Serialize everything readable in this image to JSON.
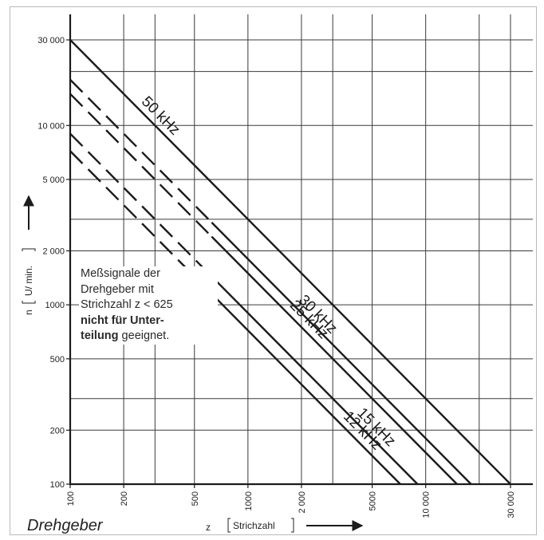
{
  "caption": "Drehgeber",
  "note": {
    "line1": "Meßsignale der",
    "line2": "Drehgeber mit",
    "line3": "Strichzahl z < 625",
    "line4_bold": "nicht für Unter-",
    "line5_bold": "teilung",
    "line5_rest": " geeignet."
  },
  "chart_data": {
    "type": "line",
    "x_scale": "log",
    "y_scale": "log",
    "xlim": [
      100,
      30000
    ],
    "ylim": [
      100,
      30000
    ],
    "x_ticks": [
      100,
      200,
      500,
      1000,
      2000,
      5000,
      10000,
      30000
    ],
    "x_tick_labels": [
      "100",
      "200",
      "500",
      "1000",
      "2 000",
      "5000",
      "10 000",
      "30 000"
    ],
    "y_ticks": [
      100,
      200,
      500,
      1000,
      2000,
      5000,
      10000,
      30000
    ],
    "y_tick_labels": [
      "100",
      "200",
      "500",
      "1000",
      "2 000",
      "5 000",
      "10 000",
      "30 000"
    ],
    "x_gridlines": [
      100,
      200,
      300,
      500,
      1000,
      2000,
      3000,
      5000,
      10000,
      20000,
      30000
    ],
    "y_gridlines": [
      100,
      200,
      300,
      500,
      1000,
      2000,
      3000,
      5000,
      10000,
      20000,
      30000
    ],
    "xlabel_symbol": "z",
    "xlabel_unit": "Strichzahl",
    "ylabel_symbol": "n",
    "ylabel_unit": "U/ min.",
    "dashed_below_z": 625,
    "series": [
      {
        "name": "50 kHz",
        "x": [
          100,
          30000
        ],
        "y": [
          30000,
          100
        ]
      },
      {
        "name": "30 kHz",
        "x": [
          100,
          18000
        ],
        "y": [
          18000,
          100
        ]
      },
      {
        "name": "25 kHz",
        "x": [
          100,
          15000
        ],
        "y": [
          15000,
          100
        ]
      },
      {
        "name": "15 kHz",
        "x": [
          100,
          9000
        ],
        "y": [
          9000,
          100
        ]
      },
      {
        "name": "12 kHz",
        "x": [
          100,
          7200
        ],
        "y": [
          7200,
          100
        ]
      }
    ],
    "grid": true
  }
}
